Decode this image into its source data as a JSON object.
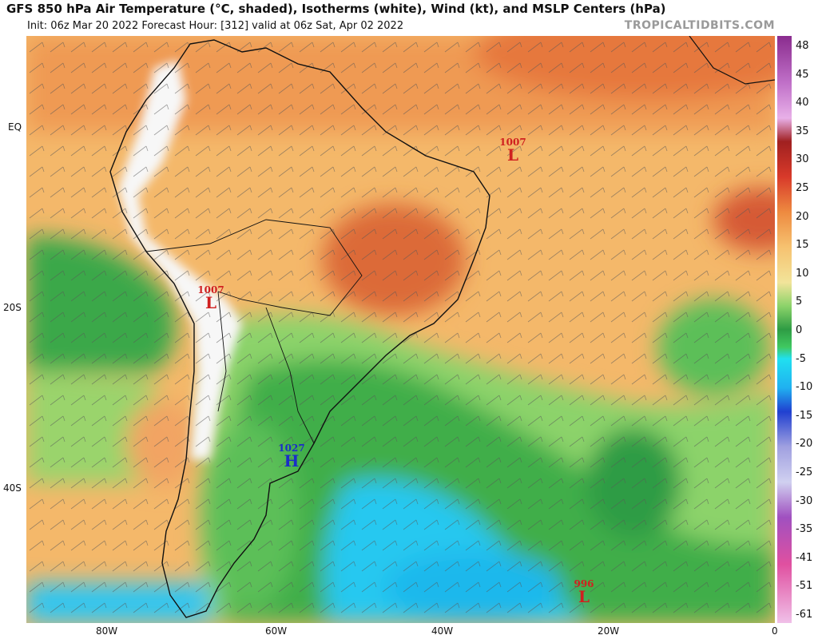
{
  "header": {
    "title": "GFS 850 hPa Air Temperature (°C, shaded), Isotherms (white), Wind (kt), and MSLP Centers (hPa)",
    "subtitle": "Init: 06z Mar 20 2022   Forecast Hour: [312]   valid at 06z Sat, Apr 02 2022",
    "credit": "TROPICALTIDBITS.COM"
  },
  "axes": {
    "lat_labels": [
      "EQ",
      "20S",
      "40S"
    ],
    "lon_labels": [
      "80W",
      "60W",
      "40W",
      "20W",
      "0"
    ]
  },
  "colorbar": {
    "labels": [
      "48",
      "45",
      "40",
      "35",
      "30",
      "25",
      "20",
      "15",
      "10",
      "5",
      "0",
      "-5",
      "-10",
      "-15",
      "-20",
      "-25",
      "-30",
      "-35",
      "-41",
      "-51",
      "-61"
    ]
  },
  "pressure_centers": [
    {
      "type": "L",
      "value": "1007",
      "name": "low-center-atlantic"
    },
    {
      "type": "L",
      "value": "1007",
      "name": "low-center-andes"
    },
    {
      "type": "H",
      "value": "1027",
      "name": "high-center-argentina"
    },
    {
      "type": "L",
      "value": "996",
      "name": "low-center-south-atlantic"
    }
  ],
  "colors": {
    "warm": "#f0a050",
    "hot": "#d86030",
    "mild": "#f4c070",
    "green": "#3fae4a",
    "light_green": "#8cd36a",
    "cyan": "#25c8f0",
    "high_marker": "#1a2ec8",
    "low_marker": "#d02020"
  }
}
